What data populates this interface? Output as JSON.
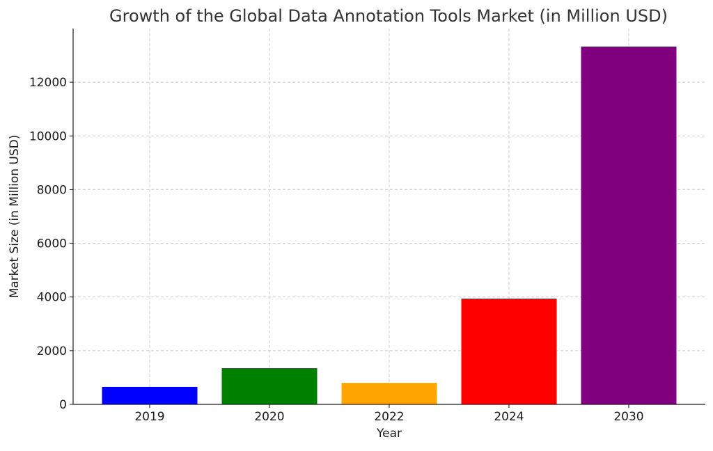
{
  "chart_data": {
    "type": "bar",
    "title": "Growth of the Global Data Annotation Tools Market (in Million USD)",
    "xlabel": "Year",
    "ylabel": "Market Size (in Million USD)",
    "categories": [
      "2019",
      "2020",
      "2022",
      "2024",
      "2030"
    ],
    "values": [
      650,
      1350,
      800,
      3940,
      13330
    ],
    "bar_colors": [
      "#0000ff",
      "#008000",
      "#ffa500",
      "#ff0000",
      "#800080"
    ],
    "ylim": [
      0,
      14000
    ],
    "yticks": [
      0,
      2000,
      4000,
      6000,
      8000,
      10000,
      12000
    ],
    "grid": true,
    "legend": "none"
  }
}
